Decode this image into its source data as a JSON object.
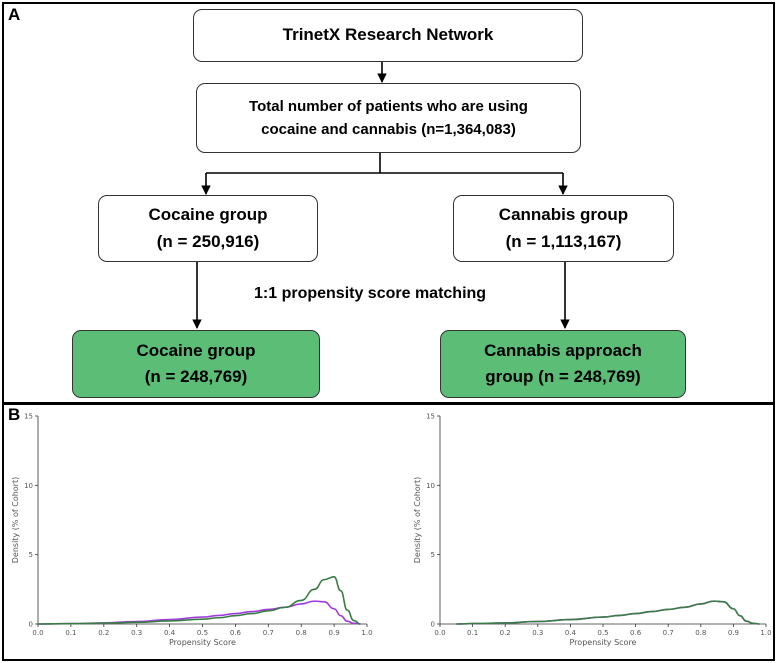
{
  "panel_a": {
    "letter": "A",
    "top_box": "TrinetX Research Network",
    "total_box": [
      "Total number of patients who are using",
      "cocaine and cannabis (n=1,364,083)"
    ],
    "left_group": [
      "Cocaine group",
      "(n = 250,916)"
    ],
    "right_group": [
      "Cannabis group",
      "(n = 1,113,167)"
    ],
    "matching_label": "1:1 propensity score matching",
    "left_matched": [
      "Cocaine group",
      "(n = 248,769)"
    ],
    "right_matched": [
      "Cannabis approach",
      "group (n = 248,769)"
    ],
    "colors": {
      "matched_fill": "#5cbd77",
      "border": "#333333"
    }
  },
  "panel_b": {
    "letter": "B"
  },
  "chart_data": [
    {
      "type": "line",
      "xlabel": "Propensity Score",
      "ylabel": "Density (% of Cohort)",
      "xlim": [
        0.0,
        1.0
      ],
      "ylim": [
        0,
        15
      ],
      "xticks": [
        "0.0",
        "0.1",
        "0.2",
        "0.3",
        "0.4",
        "0.5",
        "0.6",
        "0.7",
        "0.8",
        "0.9",
        "1.0"
      ],
      "yticks": [
        "0",
        "5",
        "10",
        "15"
      ],
      "series": [
        {
          "color": "#3a7d44",
          "x": [
            0.0,
            0.1,
            0.2,
            0.3,
            0.4,
            0.5,
            0.55,
            0.6,
            0.65,
            0.7,
            0.75,
            0.8,
            0.84,
            0.87,
            0.9,
            0.92,
            0.94,
            0.96,
            0.98
          ],
          "y": [
            0.0,
            0.02,
            0.06,
            0.12,
            0.22,
            0.35,
            0.45,
            0.6,
            0.75,
            0.95,
            1.2,
            1.7,
            2.5,
            3.2,
            3.4,
            2.4,
            1.0,
            0.25,
            0.0
          ]
        },
        {
          "color": "#a03cdc",
          "x": [
            0.0,
            0.1,
            0.2,
            0.3,
            0.4,
            0.5,
            0.55,
            0.6,
            0.65,
            0.7,
            0.75,
            0.8,
            0.84,
            0.87,
            0.9,
            0.92,
            0.94,
            0.96,
            0.98
          ],
          "y": [
            0.0,
            0.03,
            0.08,
            0.18,
            0.32,
            0.5,
            0.62,
            0.75,
            0.9,
            1.05,
            1.2,
            1.45,
            1.65,
            1.6,
            1.1,
            0.6,
            0.2,
            0.05,
            0.0
          ]
        }
      ]
    },
    {
      "type": "line",
      "xlabel": "Propensity Score",
      "ylabel": "Density (% of Cohort)",
      "xlim": [
        0.0,
        1.0
      ],
      "ylim": [
        0,
        15
      ],
      "xticks": [
        "0.0",
        "0.1",
        "0.2",
        "0.3",
        "0.4",
        "0.5",
        "0.6",
        "0.7",
        "0.8",
        "0.9",
        "1.0"
      ],
      "yticks": [
        "0",
        "5",
        "10",
        "15"
      ],
      "series": [
        {
          "color": "#3a7d44",
          "x": [
            0.05,
            0.1,
            0.2,
            0.3,
            0.4,
            0.5,
            0.55,
            0.6,
            0.65,
            0.7,
            0.75,
            0.8,
            0.84,
            0.87,
            0.9,
            0.92,
            0.94,
            0.96,
            0.98
          ],
          "y": [
            0.0,
            0.03,
            0.08,
            0.18,
            0.32,
            0.5,
            0.62,
            0.75,
            0.9,
            1.05,
            1.2,
            1.45,
            1.65,
            1.6,
            1.1,
            0.6,
            0.2,
            0.05,
            0.0
          ]
        },
        {
          "color": "#a03cdc",
          "x": [
            0.05,
            0.1,
            0.2,
            0.3,
            0.4,
            0.5,
            0.55,
            0.6,
            0.65,
            0.7,
            0.75,
            0.8,
            0.84,
            0.87,
            0.9,
            0.92,
            0.94,
            0.96,
            0.98
          ],
          "y": [
            0.0,
            0.03,
            0.08,
            0.18,
            0.32,
            0.5,
            0.62,
            0.75,
            0.9,
            1.05,
            1.2,
            1.45,
            1.65,
            1.6,
            1.1,
            0.6,
            0.2,
            0.05,
            0.0
          ]
        }
      ]
    }
  ]
}
